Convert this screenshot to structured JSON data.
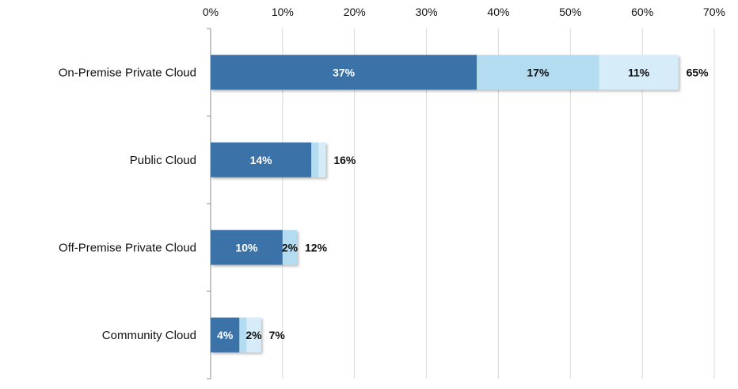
{
  "chart_data": {
    "type": "bar",
    "orientation": "horizontal",
    "stacked": true,
    "title": "",
    "xlabel": "",
    "ylabel": "",
    "xlim": [
      0,
      70
    ],
    "x_ticks": [
      0,
      10,
      20,
      30,
      40,
      50,
      60,
      70
    ],
    "x_tick_labels": [
      "0%",
      "10%",
      "20%",
      "30%",
      "40%",
      "50%",
      "60%",
      "70%"
    ],
    "axis_position": "top",
    "grid": "vertical",
    "legend": "none",
    "categories": [
      "On-Premise Private Cloud",
      "Public Cloud",
      "Off-Premise Private Cloud",
      "Community Cloud"
    ],
    "series": [
      {
        "values": [
          37,
          14,
          10,
          4
        ],
        "color": "#3a72a8",
        "labels": [
          "37%",
          "14%",
          "10%",
          "4%"
        ],
        "label_color": "#ffffff"
      },
      {
        "values": [
          17,
          1,
          2,
          1
        ],
        "color": "#b3dcf1",
        "labels": [
          "17%",
          "",
          "2%",
          ""
        ],
        "label_color": "#111111"
      },
      {
        "values": [
          11,
          1,
          0,
          2
        ],
        "color": "#d6edf9",
        "labels": [
          "11%",
          "",
          "",
          "2%"
        ],
        "label_color": "#111111"
      }
    ],
    "totals": [
      65,
      16,
      12,
      7
    ],
    "total_labels": [
      "65%",
      "16%",
      "12%",
      "7%"
    ]
  }
}
